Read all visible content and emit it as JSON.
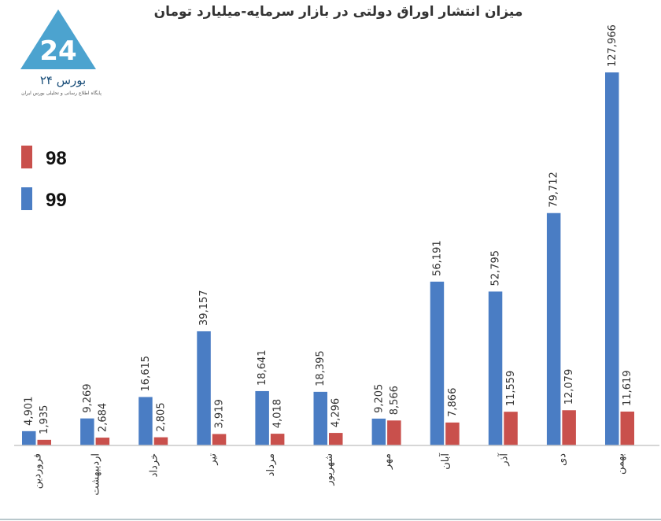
{
  "logo": {
    "name": "بورس ۲۴",
    "tagline": "پایگاه اطلاع رسانی و تحلیلی بورس ایران"
  },
  "chart_data": {
    "type": "bar",
    "title": "میزان انتشار اوراق دولتی در بازار سرمایه-میلیارد تومان",
    "xlabel": "",
    "ylabel": "",
    "ylim": [
      0,
      130000
    ],
    "grid": false,
    "legend_position": "left",
    "categories": [
      "فروردین",
      "اردیبهشت",
      "خرداد",
      "تیر",
      "مرداد",
      "شهریور",
      "مهر",
      "آبان",
      "آذر",
      "دی",
      "بهمن"
    ],
    "series": [
      {
        "name": "99",
        "color": "#4a7dc4",
        "values": [
          4901,
          9269,
          16615,
          39157,
          18641,
          18395,
          9205,
          56191,
          52795,
          79712,
          127966
        ],
        "labels": [
          "4,901",
          "9,269",
          "16,615",
          "39,157",
          "18,641",
          "18,395",
          "9,205",
          "56,191",
          "52,795",
          "79,712",
          "127,966"
        ]
      },
      {
        "name": "98",
        "color": "#c9504c",
        "values": [
          1935,
          2684,
          2805,
          3919,
          4018,
          4296,
          8566,
          7866,
          11559,
          12079,
          11619
        ],
        "labels": [
          "1,935",
          "2,684",
          "2,805",
          "3,919",
          "4,018",
          "4,296",
          "8,566",
          "7,866",
          "11,559",
          "12,079",
          "11,619"
        ]
      }
    ]
  }
}
